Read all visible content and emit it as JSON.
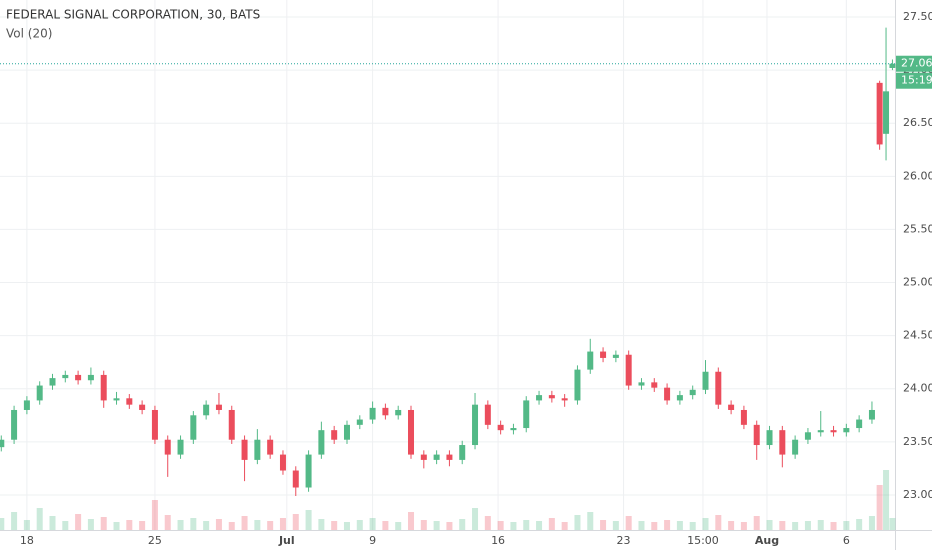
{
  "chart_data": {
    "type": "candlestick",
    "title": "FEDERAL SIGNAL CORPORATION, 30, BATS",
    "subtitle": "Vol (20)",
    "up_color": "#53b987",
    "down_color": "#eb4d5c",
    "grid": true,
    "xlim": [
      -1.05,
      33.9
    ],
    "xticks": [
      {
        "value": 0,
        "label": "18"
      },
      {
        "value": 5,
        "label": "25"
      },
      {
        "value": 10.15,
        "label": "Jul"
      },
      {
        "value": 13.5,
        "label": "9"
      },
      {
        "value": 18.4,
        "label": "16"
      },
      {
        "value": 23.3,
        "label": "23"
      },
      {
        "value": 26.4,
        "label": "15:00"
      },
      {
        "value": 28.9,
        "label": "Aug"
      },
      {
        "value": 32,
        "label": "6"
      }
    ],
    "ylim": [
      22.67,
      27.66
    ],
    "yticks": [
      {
        "value": 23,
        "label": "23.00"
      },
      {
        "value": 23.5,
        "label": "23.50"
      },
      {
        "value": 24,
        "label": "24.00"
      },
      {
        "value": 24.5,
        "label": "24.50"
      },
      {
        "value": 25,
        "label": "25.00"
      },
      {
        "value": 25.5,
        "label": "25.50"
      },
      {
        "value": 26,
        "label": "26.00"
      },
      {
        "value": 26.5,
        "label": "26.50"
      },
      {
        "value": 27,
        "label": "27.00"
      },
      {
        "value": 27.5,
        "label": "27.50"
      }
    ],
    "last_price": {
      "value": 27.06,
      "label": "27.06"
    },
    "countdown": "15:19",
    "x": [
      -1,
      -0.5,
      0,
      0.5,
      1,
      1.5,
      2,
      2.5,
      3,
      3.5,
      4,
      4.5,
      5,
      5.5,
      6,
      6.5,
      7,
      7.5,
      8,
      8.5,
      9,
      9.5,
      10,
      10.5,
      11,
      11.5,
      12,
      12.5,
      13,
      13.5,
      14,
      14.5,
      15,
      15.5,
      16,
      16.5,
      17,
      17.5,
      18,
      18.5,
      19,
      19.5,
      20,
      20.5,
      21,
      21.5,
      22,
      22.5,
      23,
      23.5,
      24,
      24.5,
      25,
      25.5,
      26,
      26.5,
      27,
      27.5,
      28,
      28.5,
      29,
      29.5,
      30,
      30.5,
      31,
      31.5,
      32,
      32.5,
      33,
      33.3,
      33.55,
      33.8
    ],
    "open": [
      23.45,
      23.52,
      23.8,
      23.89,
      24.03,
      24.1,
      24.13,
      24.08,
      24.13,
      23.89,
      23.91,
      23.85,
      23.8,
      23.52,
      23.38,
      23.52,
      23.75,
      23.85,
      23.8,
      23.52,
      23.33,
      23.52,
      23.38,
      23.23,
      23.07,
      23.38,
      23.61,
      23.52,
      23.66,
      23.71,
      23.82,
      23.75,
      23.8,
      23.38,
      23.33,
      23.38,
      23.33,
      23.47,
      23.85,
      23.66,
      23.61,
      23.63,
      23.89,
      23.94,
      23.91,
      23.89,
      24.18,
      24.35,
      24.29,
      24.32,
      24.03,
      24.06,
      24.01,
      23.89,
      23.94,
      23.99,
      24.16,
      23.85,
      23.8,
      23.66,
      23.47,
      23.61,
      23.38,
      23.52,
      23.59,
      23.61,
      23.59,
      23.63,
      23.71,
      26.88,
      26.4,
      27.02
    ],
    "high": [
      23.56,
      23.84,
      23.93,
      24.07,
      24.14,
      24.17,
      24.17,
      24.2,
      24.17,
      23.97,
      23.95,
      23.89,
      23.84,
      23.56,
      23.56,
      23.79,
      23.89,
      23.96,
      23.84,
      23.56,
      23.62,
      23.56,
      23.42,
      23.27,
      23.42,
      23.69,
      23.65,
      23.7,
      23.75,
      23.88,
      23.86,
      23.84,
      23.84,
      23.42,
      23.42,
      23.42,
      23.51,
      23.96,
      23.89,
      23.7,
      23.67,
      23.93,
      23.98,
      23.98,
      23.95,
      24.22,
      24.47,
      24.39,
      24.36,
      24.36,
      24.1,
      24.1,
      24.05,
      23.98,
      24.03,
      24.27,
      24.2,
      23.89,
      23.84,
      23.7,
      23.65,
      23.65,
      23.56,
      23.63,
      23.79,
      23.65,
      23.67,
      23.75,
      23.88,
      26.9,
      27.4,
      27.1
    ],
    "low": [
      23.41,
      23.48,
      23.76,
      23.85,
      23.99,
      24.06,
      24.04,
      24.04,
      23.82,
      23.85,
      23.81,
      23.76,
      23.48,
      23.17,
      23.34,
      23.48,
      23.71,
      23.76,
      23.48,
      23.13,
      23.29,
      23.34,
      23.19,
      22.99,
      23.03,
      23.34,
      23.48,
      23.48,
      23.62,
      23.67,
      23.71,
      23.71,
      23.34,
      23.25,
      23.29,
      23.27,
      23.29,
      23.43,
      23.62,
      23.57,
      23.57,
      23.59,
      23.85,
      23.87,
      23.83,
      23.85,
      24.14,
      24.25,
      24.25,
      23.99,
      23.99,
      23.97,
      23.85,
      23.85,
      23.9,
      23.95,
      23.81,
      23.76,
      23.62,
      23.33,
      23.43,
      23.26,
      23.34,
      23.48,
      23.55,
      23.55,
      23.55,
      23.59,
      23.67,
      26.25,
      26.15,
      27.0
    ],
    "close": [
      23.52,
      23.8,
      23.89,
      24.03,
      24.1,
      24.13,
      24.08,
      24.13,
      23.89,
      23.91,
      23.85,
      23.8,
      23.52,
      23.38,
      23.52,
      23.75,
      23.85,
      23.8,
      23.52,
      23.33,
      23.52,
      23.38,
      23.23,
      23.07,
      23.38,
      23.61,
      23.52,
      23.66,
      23.71,
      23.82,
      23.75,
      23.8,
      23.38,
      23.33,
      23.38,
      23.33,
      23.47,
      23.85,
      23.66,
      23.61,
      23.63,
      23.89,
      23.94,
      23.91,
      23.89,
      24.18,
      24.35,
      24.29,
      24.32,
      24.03,
      24.06,
      24.01,
      23.89,
      23.94,
      23.99,
      24.16,
      23.85,
      23.8,
      23.66,
      23.47,
      23.61,
      23.38,
      23.52,
      23.59,
      23.61,
      23.59,
      23.63,
      23.71,
      23.8,
      26.3,
      26.8,
      27.06
    ],
    "volume": [
      12,
      18,
      10,
      22,
      14,
      9,
      16,
      11,
      13,
      8,
      10,
      9,
      30,
      15,
      10,
      12,
      9,
      11,
      8,
      14,
      10,
      9,
      12,
      16,
      20,
      11,
      9,
      8,
      10,
      12,
      9,
      8,
      18,
      10,
      9,
      8,
      11,
      22,
      14,
      9,
      8,
      10,
      9,
      12,
      8,
      15,
      18,
      10,
      9,
      14,
      9,
      8,
      10,
      9,
      8,
      12,
      15,
      9,
      8,
      14,
      10,
      9,
      8,
      9,
      10,
      8,
      9,
      11,
      14,
      45,
      60,
      12
    ]
  }
}
